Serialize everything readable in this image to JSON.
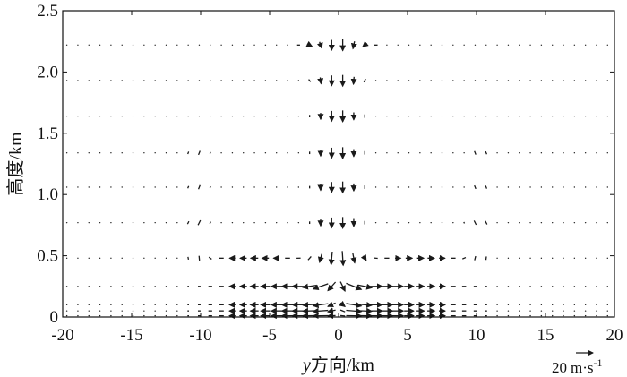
{
  "chart_data": {
    "type": "quiver",
    "xlabel_var": "y",
    "xlabel_rest": "方向/km",
    "ylabel": "高度/km",
    "xlim": [
      -20,
      20
    ],
    "ylim": [
      0,
      2.5
    ],
    "xticks": [
      "-20",
      "-15",
      "-10",
      "-5",
      "0",
      "5",
      "10",
      "15",
      "20"
    ],
    "yticks": [
      "0",
      "0.5",
      "1.0",
      "1.5",
      "2.0",
      "2.5"
    ],
    "reference_vector": {
      "label_number": "20",
      "label_unit": "m·s",
      "label_exp": "-1",
      "magnitude": 20
    },
    "grid_x_start": -19.7,
    "grid_x_step": 0.8,
    "grid_x_count": 50,
    "levels_km": [
      0.01,
      0.05,
      0.1,
      0.25,
      0.48,
      0.77,
      1.06,
      1.34,
      1.64,
      1.93,
      2.22
    ],
    "vector_field": {
      "core_half_width_km": 2.6,
      "downdraft_peak_m_s": 15,
      "outflow_peak_m_s": 18,
      "ring_center_km": 10.2,
      "ring_half_width_km": 1.5
    },
    "colors": {
      "arrow": "#1a1a1a",
      "axis": "#111111",
      "dot": "#222222"
    }
  }
}
